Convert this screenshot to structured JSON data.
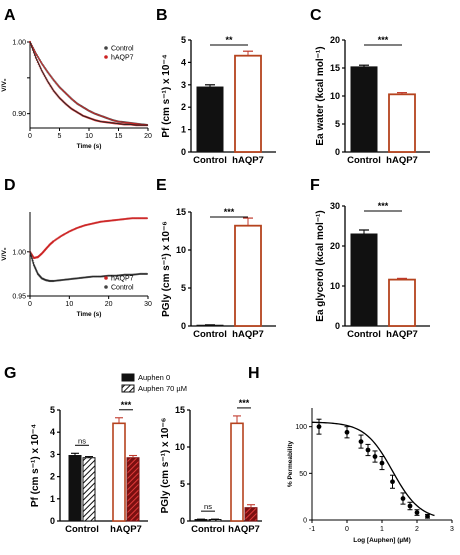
{
  "figure": {
    "panel_labels": [
      "A",
      "B",
      "C",
      "D",
      "E",
      "F",
      "G",
      "H"
    ]
  },
  "chart_data": [
    {
      "panel": "A",
      "type": "line",
      "ylabel": "V/V₀",
      "xlabel": "Time (s)",
      "xlim": [
        0,
        20
      ],
      "ylim": [
        0.88,
        1.0
      ],
      "xticks": [
        0,
        5,
        10,
        15,
        20
      ],
      "yticks": [
        0.9,
        0.95,
        1.0
      ],
      "ytick_labels": [
        "0.90",
        "",
        "1.00"
      ],
      "legend_position": "top-right",
      "series": [
        {
          "name": "Control",
          "color": "#444444",
          "marker": "dot",
          "x": [
            0,
            1,
            2,
            3,
            4,
            5,
            6,
            7,
            8,
            9,
            10,
            11,
            12,
            13,
            14,
            15,
            16,
            17,
            18,
            19,
            20
          ],
          "y": [
            1.0,
            0.984,
            0.97,
            0.958,
            0.947,
            0.937,
            0.929,
            0.921,
            0.914,
            0.909,
            0.904,
            0.9,
            0.897,
            0.894,
            0.891,
            0.889,
            0.888,
            0.887,
            0.886,
            0.885,
            0.884
          ]
        },
        {
          "name": "hAQP7",
          "color": "#cc2222",
          "marker": "dot",
          "x": [
            0,
            1,
            2,
            3,
            4,
            5,
            6,
            7,
            8,
            9,
            10,
            11,
            12,
            13,
            14,
            15,
            16,
            17,
            18,
            19,
            20
          ],
          "y": [
            1.0,
            0.978,
            0.96,
            0.945,
            0.932,
            0.922,
            0.914,
            0.907,
            0.902,
            0.897,
            0.894,
            0.891,
            0.889,
            0.888,
            0.887,
            0.886,
            0.885,
            0.885,
            0.884,
            0.884,
            0.884
          ]
        }
      ]
    },
    {
      "panel": "B",
      "type": "bar",
      "categories": [
        "Control",
        "hAQP7"
      ],
      "values": [
        2.9,
        4.3
      ],
      "errors": [
        0.1,
        0.2
      ],
      "colors": [
        "#111111",
        "#ffffff"
      ],
      "edge_colors": [
        "#111111",
        "#b5431e"
      ],
      "ylabel": "Pf (cm s⁻¹) x 10⁻⁴",
      "ylim": [
        0,
        5
      ],
      "yticks": [
        0,
        1,
        2,
        3,
        4,
        5
      ],
      "significance": "**"
    },
    {
      "panel": "C",
      "type": "bar",
      "categories": [
        "Control",
        "hAQP7"
      ],
      "values": [
        15.2,
        10.3
      ],
      "errors": [
        0.3,
        0.3
      ],
      "colors": [
        "#111111",
        "#ffffff"
      ],
      "edge_colors": [
        "#111111",
        "#b5431e"
      ],
      "ylabel": "Ea water (kcal mol⁻¹)",
      "ylim": [
        0,
        20
      ],
      "yticks": [
        0,
        5,
        10,
        15,
        20
      ],
      "significance": "***"
    },
    {
      "panel": "D",
      "type": "line",
      "ylabel": "V/V₀",
      "xlabel": "Time (s)",
      "xlim": [
        0,
        30
      ],
      "ylim": [
        0.95,
        1.045
      ],
      "xticks": [
        0,
        10,
        20,
        30
      ],
      "yticks": [
        0.95,
        1.0
      ],
      "ytick_labels": [
        "0.95",
        "1.00"
      ],
      "legend_position": "bottom-right",
      "series": [
        {
          "name": "hAQP7",
          "color": "#cc2222",
          "marker": "dot",
          "x": [
            0,
            1,
            2,
            3,
            4,
            5,
            6,
            8,
            10,
            12,
            14,
            16,
            18,
            20,
            22,
            24,
            26,
            28,
            30
          ],
          "y": [
            1.0,
            0.993,
            0.994,
            0.998,
            1.003,
            1.008,
            1.012,
            1.018,
            1.023,
            1.027,
            1.03,
            1.032,
            1.034,
            1.035,
            1.036,
            1.037,
            1.038,
            1.038,
            1.038
          ]
        },
        {
          "name": "Control",
          "color": "#444444",
          "marker": "dot",
          "x": [
            0,
            1,
            2,
            3,
            4,
            5,
            6,
            8,
            10,
            12,
            14,
            16,
            18,
            20,
            22,
            24,
            26,
            28,
            30
          ],
          "y": [
            1.0,
            0.985,
            0.975,
            0.97,
            0.968,
            0.967,
            0.967,
            0.968,
            0.969,
            0.97,
            0.971,
            0.972,
            0.972,
            0.973,
            0.973,
            0.974,
            0.974,
            0.975,
            0.975
          ]
        }
      ]
    },
    {
      "panel": "E",
      "type": "bar",
      "categories": [
        "Control",
        "hAQP7"
      ],
      "values": [
        0.1,
        13.2
      ],
      "errors": [
        0.05,
        1.0
      ],
      "colors": [
        "#111111",
        "#ffffff"
      ],
      "edge_colors": [
        "#111111",
        "#b5431e"
      ],
      "ylabel": "PGly (cm s⁻¹) x 10⁻⁶",
      "ylim": [
        0,
        15
      ],
      "yticks": [
        0,
        5,
        10,
        15
      ],
      "significance": "***"
    },
    {
      "panel": "F",
      "type": "bar",
      "categories": [
        "Control",
        "hAQP7"
      ],
      "values": [
        23.0,
        11.6
      ],
      "errors": [
        1.0,
        0.3
      ],
      "colors": [
        "#111111",
        "#ffffff"
      ],
      "edge_colors": [
        "#111111",
        "#b5431e"
      ],
      "ylabel": "Ea glycerol (kcal mol⁻¹)",
      "ylim": [
        0,
        30
      ],
      "yticks": [
        0,
        10,
        20,
        30
      ],
      "significance": "***"
    },
    {
      "panel": "G1",
      "type": "bar",
      "categories": [
        "Control",
        "hAQP7"
      ],
      "series": [
        {
          "name": "Auphen 0",
          "values": [
            2.95,
            4.4
          ],
          "errors": [
            0.1,
            0.25
          ]
        },
        {
          "name": "Auphen 70 µM",
          "values": [
            2.85,
            2.85
          ],
          "errors": [
            0.05,
            0.1
          ]
        }
      ],
      "ylabel": "Pf (cm s⁻¹) x 10⁻⁴",
      "ylim": [
        0,
        5
      ],
      "yticks": [
        0,
        1,
        2,
        3,
        4,
        5
      ],
      "significance": [
        "ns",
        "***"
      ],
      "legend_position": "top"
    },
    {
      "panel": "G2",
      "type": "bar",
      "categories": [
        "Control",
        "hAQP7"
      ],
      "series": [
        {
          "name": "Auphen 0",
          "values": [
            0.2,
            13.2
          ],
          "errors": [
            0.05,
            1.0
          ]
        },
        {
          "name": "Auphen 70 µM",
          "values": [
            0.2,
            1.8
          ],
          "errors": [
            0.05,
            0.4
          ]
        }
      ],
      "ylabel": "PGly (cm s⁻¹) x 10⁻⁶",
      "ylim": [
        0,
        15
      ],
      "yticks": [
        0,
        5,
        10,
        15
      ],
      "significance": [
        "ns",
        "***"
      ]
    },
    {
      "panel": "H",
      "type": "scatter",
      "ylabel": "% Permeability",
      "xlabel": "Log [Auphen] (µM)",
      "xlim": [
        -1,
        3
      ],
      "ylim": [
        0,
        120
      ],
      "xticks": [
        -1,
        0,
        1,
        2,
        3
      ],
      "yticks": [
        0,
        50,
        100
      ],
      "x": [
        -0.8,
        0.0,
        0.4,
        0.6,
        0.8,
        1.0,
        1.3,
        1.6,
        1.8,
        2.0,
        2.3
      ],
      "y": [
        100,
        94,
        84,
        75,
        68,
        61,
        41,
        23,
        15,
        8,
        4
      ],
      "errors": [
        8,
        6,
        7,
        6,
        6,
        7,
        7,
        6,
        4,
        3,
        2
      ],
      "fit_curve": "sigmoidal dose-response"
    }
  ]
}
